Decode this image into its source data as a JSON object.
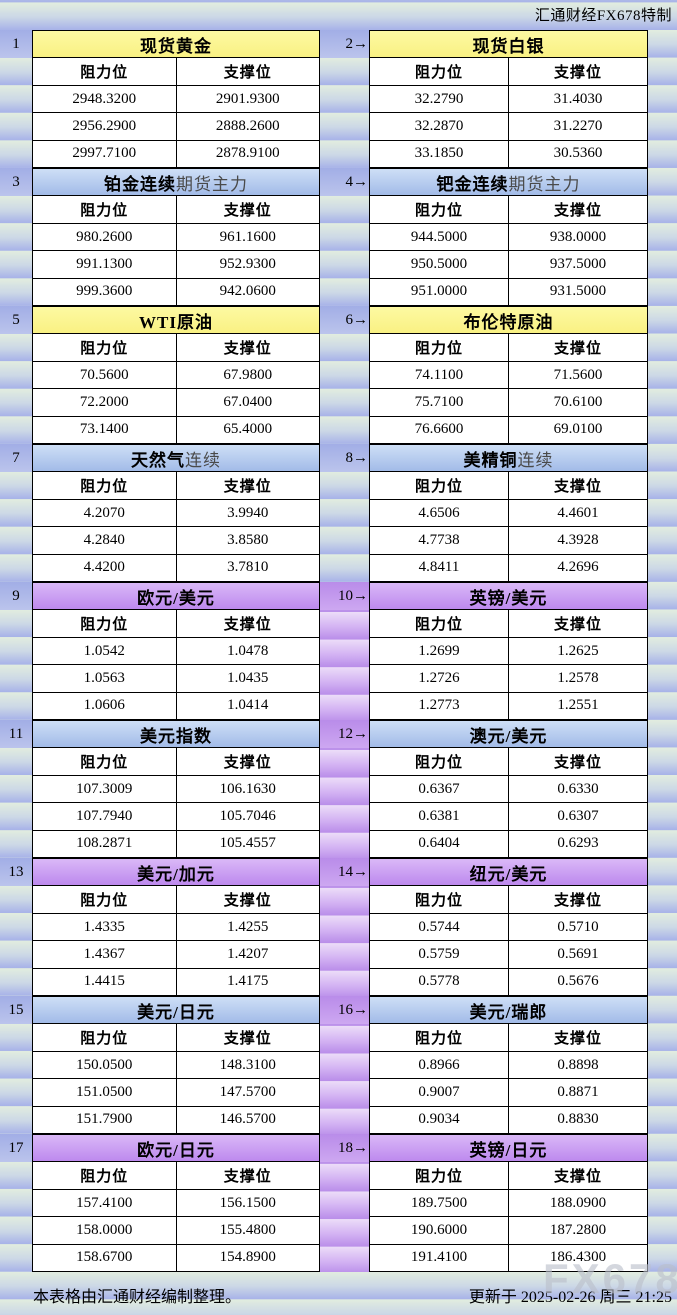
{
  "page": {
    "top_right_credit": "汇通财经FX678特制",
    "watermark": "FX678",
    "footer_left": "本表格由汇通财经编制整理。",
    "footer_right": "更新于 2025-02-26 周三 21:25"
  },
  "columns": {
    "resistance": "阻力位",
    "support": "支撑位"
  },
  "theme": {
    "yellow_header": "#f9f183",
    "blue_header": "#a2bbe8",
    "purple_header": "#bd89ee",
    "stripe_blue": "#a7b2e8",
    "stripe_purple": "#b98de9"
  },
  "panels": [
    {
      "num_label": "1",
      "title_main": "现货黄金",
      "title_sub": "",
      "style": "yellow",
      "rows": [
        [
          "2948.3200",
          "2901.9300"
        ],
        [
          "2956.2900",
          "2888.2600"
        ],
        [
          "2997.7100",
          "2878.9100"
        ]
      ]
    },
    {
      "num_label": "2→",
      "title_main": "现货白银",
      "title_sub": "",
      "style": "yellow",
      "rows": [
        [
          "32.2790",
          "31.4030"
        ],
        [
          "32.2870",
          "31.2270"
        ],
        [
          "33.1850",
          "30.5360"
        ]
      ]
    },
    {
      "num_label": "3",
      "title_main": "铂金连续",
      "title_sub": "期货主力",
      "style": "blue",
      "rows": [
        [
          "980.2600",
          "961.1600"
        ],
        [
          "991.1300",
          "952.9300"
        ],
        [
          "999.3600",
          "942.0600"
        ]
      ]
    },
    {
      "num_label": "4→",
      "title_main": "钯金连续",
      "title_sub": "期货主力",
      "style": "blue",
      "rows": [
        [
          "944.5000",
          "938.0000"
        ],
        [
          "950.5000",
          "937.5000"
        ],
        [
          "951.0000",
          "931.5000"
        ]
      ]
    },
    {
      "num_label": "5",
      "title_main": "WTI原油",
      "title_sub": "",
      "style": "yellow",
      "rows": [
        [
          "70.5600",
          "67.9800"
        ],
        [
          "72.2000",
          "67.0400"
        ],
        [
          "73.1400",
          "65.4000"
        ]
      ]
    },
    {
      "num_label": "6→",
      "title_main": "布伦特原油",
      "title_sub": "",
      "style": "yellow",
      "rows": [
        [
          "74.1100",
          "71.5600"
        ],
        [
          "75.7100",
          "70.6100"
        ],
        [
          "76.6600",
          "69.0100"
        ]
      ]
    },
    {
      "num_label": "7",
      "title_main": "天然气",
      "title_sub": "连续",
      "style": "blue",
      "rows": [
        [
          "4.2070",
          "3.9940"
        ],
        [
          "4.2840",
          "3.8580"
        ],
        [
          "4.4200",
          "3.7810"
        ]
      ]
    },
    {
      "num_label": "8→",
      "title_main": "美精铜",
      "title_sub": "连续",
      "style": "blue",
      "rows": [
        [
          "4.6506",
          "4.4601"
        ],
        [
          "4.7738",
          "4.3928"
        ],
        [
          "4.8411",
          "4.2696"
        ]
      ]
    },
    {
      "num_label": "9",
      "title_main": "欧元/美元",
      "title_sub": "",
      "style": "purple",
      "rows": [
        [
          "1.0542",
          "1.0478"
        ],
        [
          "1.0563",
          "1.0435"
        ],
        [
          "1.0606",
          "1.0414"
        ]
      ]
    },
    {
      "num_label": "10→",
      "title_main": "英镑/美元",
      "title_sub": "",
      "style": "purple",
      "rows": [
        [
          "1.2699",
          "1.2625"
        ],
        [
          "1.2726",
          "1.2578"
        ],
        [
          "1.2773",
          "1.2551"
        ]
      ]
    },
    {
      "num_label": "11",
      "title_main": "美元指数",
      "title_sub": "",
      "style": "blue",
      "rows": [
        [
          "107.3009",
          "106.1630"
        ],
        [
          "107.7940",
          "105.7046"
        ],
        [
          "108.2871",
          "105.4557"
        ]
      ]
    },
    {
      "num_label": "12→",
      "title_main": "澳元/美元",
      "title_sub": "",
      "style": "blue",
      "rows": [
        [
          "0.6367",
          "0.6330"
        ],
        [
          "0.6381",
          "0.6307"
        ],
        [
          "0.6404",
          "0.6293"
        ]
      ]
    },
    {
      "num_label": "13",
      "title_main": "美元/加元",
      "title_sub": "",
      "style": "purple",
      "rows": [
        [
          "1.4335",
          "1.4255"
        ],
        [
          "1.4367",
          "1.4207"
        ],
        [
          "1.4415",
          "1.4175"
        ]
      ]
    },
    {
      "num_label": "14→",
      "title_main": "纽元/美元",
      "title_sub": "",
      "style": "purple",
      "rows": [
        [
          "0.5744",
          "0.5710"
        ],
        [
          "0.5759",
          "0.5691"
        ],
        [
          "0.5778",
          "0.5676"
        ]
      ]
    },
    {
      "num_label": "15",
      "title_main": "美元/日元",
      "title_sub": "",
      "style": "blue",
      "rows": [
        [
          "150.0500",
          "148.3100"
        ],
        [
          "151.0500",
          "147.5700"
        ],
        [
          "151.7900",
          "146.5700"
        ]
      ]
    },
    {
      "num_label": "16→",
      "title_main": "美元/瑞郎",
      "title_sub": "",
      "style": "blue",
      "rows": [
        [
          "0.8966",
          "0.8898"
        ],
        [
          "0.9007",
          "0.8871"
        ],
        [
          "0.9034",
          "0.8830"
        ]
      ]
    },
    {
      "num_label": "17",
      "title_main": "欧元/日元",
      "title_sub": "",
      "style": "purple",
      "rows": [
        [
          "157.4100",
          "156.1500"
        ],
        [
          "158.0000",
          "155.4800"
        ],
        [
          "158.6700",
          "154.8900"
        ]
      ]
    },
    {
      "num_label": "18→",
      "title_main": "英镑/日元",
      "title_sub": "",
      "style": "purple",
      "rows": [
        [
          "189.7500",
          "188.0900"
        ],
        [
          "190.6000",
          "187.2800"
        ],
        [
          "191.4100",
          "186.4300"
        ]
      ]
    }
  ]
}
